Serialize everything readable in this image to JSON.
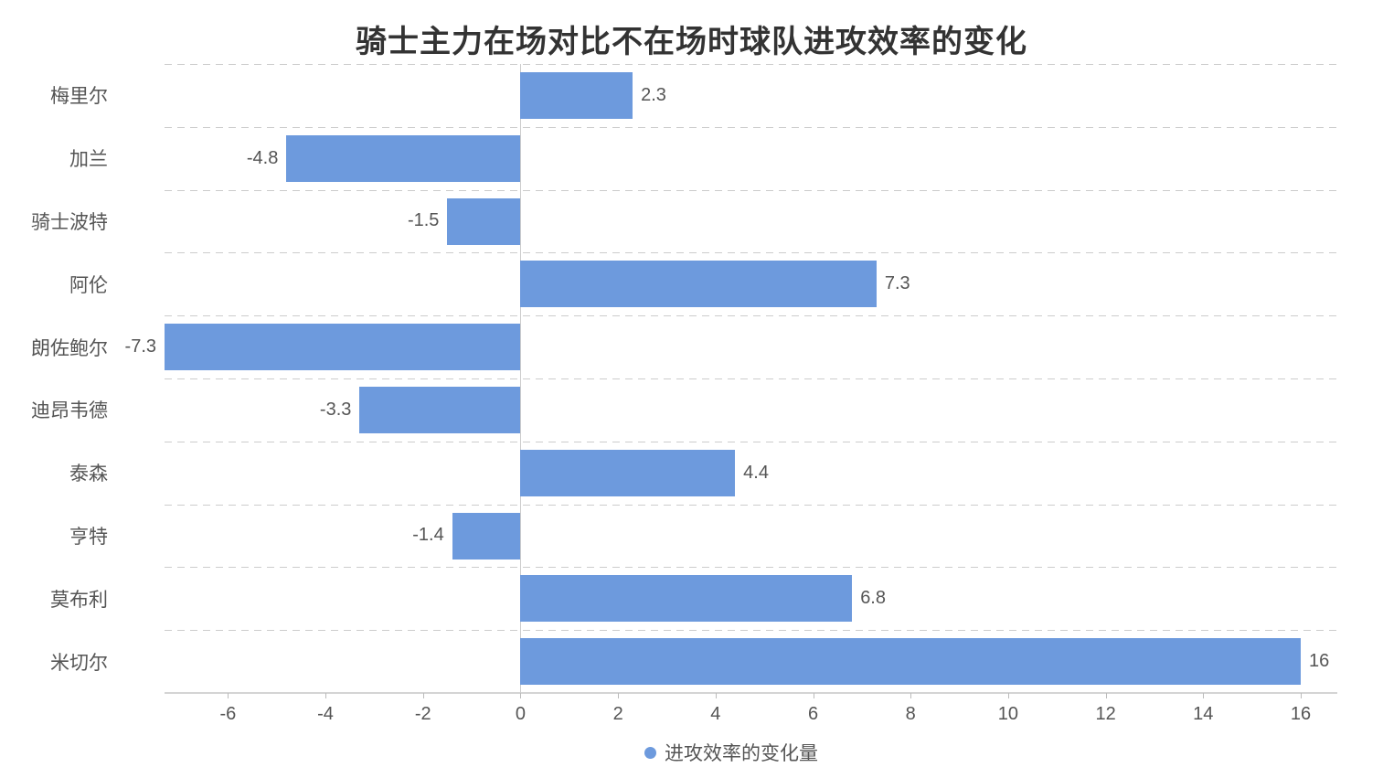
{
  "title": "骑士主力在场对比不在场时球队进攻效率的变化",
  "legend": {
    "label": "进攻效率的变化量"
  },
  "colors": {
    "bar": "#6d9add",
    "title_text": "#333333",
    "label_text": "#555555",
    "grid_line": "#cccccc",
    "axis_line": "#d4d4d4"
  },
  "chart_data": {
    "type": "bar",
    "orientation": "horizontal",
    "title": "骑士主力在场对比不在场时球队进攻效率的变化",
    "categories": [
      "梅里尔",
      "加兰",
      "骑士波特",
      "阿伦",
      "朗佐鲍尔",
      "迪昂韦德",
      "泰森",
      "亨特",
      "莫布利",
      "米切尔"
    ],
    "series": [
      {
        "name": "进攻效率的变化量",
        "values": [
          2.3,
          -4.8,
          -1.5,
          7.3,
          -7.3,
          -3.3,
          4.4,
          -1.4,
          6.8,
          16
        ]
      }
    ],
    "value_labels": [
      "2.3",
      "-4.8",
      "-1.5",
      "7.3",
      "-7.3",
      "-3.3",
      "4.4",
      "-1.4",
      "6.8",
      "16"
    ],
    "xlabel": "",
    "ylabel": "",
    "x_ticks": [
      -6,
      -4,
      -2,
      0,
      2,
      4,
      6,
      8,
      10,
      12,
      14,
      16
    ],
    "xlim": [
      -7.3,
      16.75
    ],
    "grid": true,
    "grid_style": "dashed-horizontal-band-boundaries",
    "legend_position": "bottom"
  }
}
